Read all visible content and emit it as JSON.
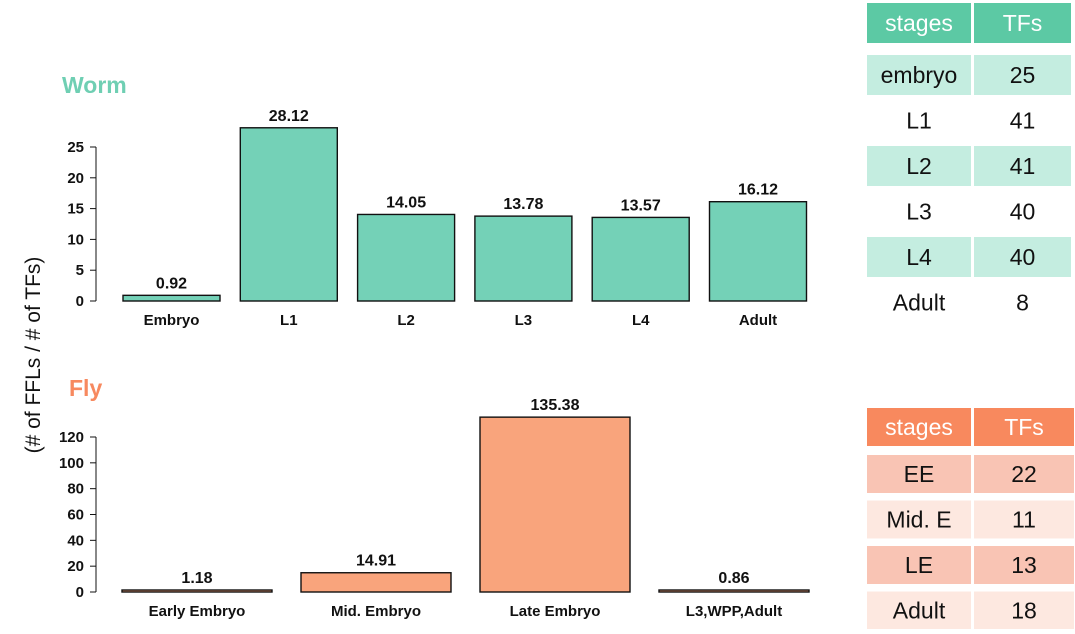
{
  "ylabel": "(# of FFLs / # of TFs)",
  "colors": {
    "worm_bar": "#74d1b7",
    "worm_title": "#6fcfb3",
    "worm_header": "#5cc9a4",
    "worm_row": "#c4ede0",
    "fly_bar": "#f9a47c",
    "fly_title": "#f7895f",
    "fly_header": "#f8895e",
    "fly_row_dark": "#f9c4b4",
    "fly_row_light": "#fde8e0"
  },
  "chart_data": [
    {
      "type": "bar",
      "title": "Worm",
      "ylabel": "(# of FFLs / # of TFs)",
      "categories": [
        "Embryo",
        "L1",
        "L2",
        "L3",
        "L4",
        "Adult"
      ],
      "values": [
        0.92,
        28.12,
        14.05,
        13.78,
        13.57,
        16.12
      ],
      "value_labels": [
        "0.92",
        "28.12",
        "14.05",
        "13.78",
        "13.57",
        "16.12"
      ],
      "yticks": [
        "0",
        "5",
        "10",
        "15",
        "20",
        "25"
      ],
      "ylim": [
        0,
        25
      ],
      "grid": false
    },
    {
      "type": "bar",
      "title": "Fly",
      "ylabel": "(# of FFLs / # of TFs)",
      "categories": [
        "Early Embryo",
        "Mid. Embryo",
        "Late Embryo",
        "L3,WPP,Adult"
      ],
      "values": [
        1.18,
        14.91,
        135.38,
        0.86
      ],
      "value_labels": [
        "1.18",
        "14.91",
        "135.38",
        "0.86"
      ],
      "yticks": [
        "0",
        "20",
        "40",
        "60",
        "80",
        "100",
        "120"
      ],
      "ylim": [
        0,
        120
      ],
      "grid": false
    }
  ],
  "worm_table": {
    "headers": [
      "stages",
      "TFs"
    ],
    "rows": [
      [
        "embryo",
        "25"
      ],
      [
        "L1",
        "41"
      ],
      [
        "L2",
        "41"
      ],
      [
        "L3",
        "40"
      ],
      [
        "L4",
        "40"
      ],
      [
        "Adult",
        "8"
      ]
    ]
  },
  "fly_table": {
    "headers": [
      "stages",
      "TFs"
    ],
    "rows": [
      [
        "EE",
        "22"
      ],
      [
        "Mid. E",
        "11"
      ],
      [
        "LE",
        "13"
      ],
      [
        "Adult",
        "18"
      ]
    ]
  }
}
